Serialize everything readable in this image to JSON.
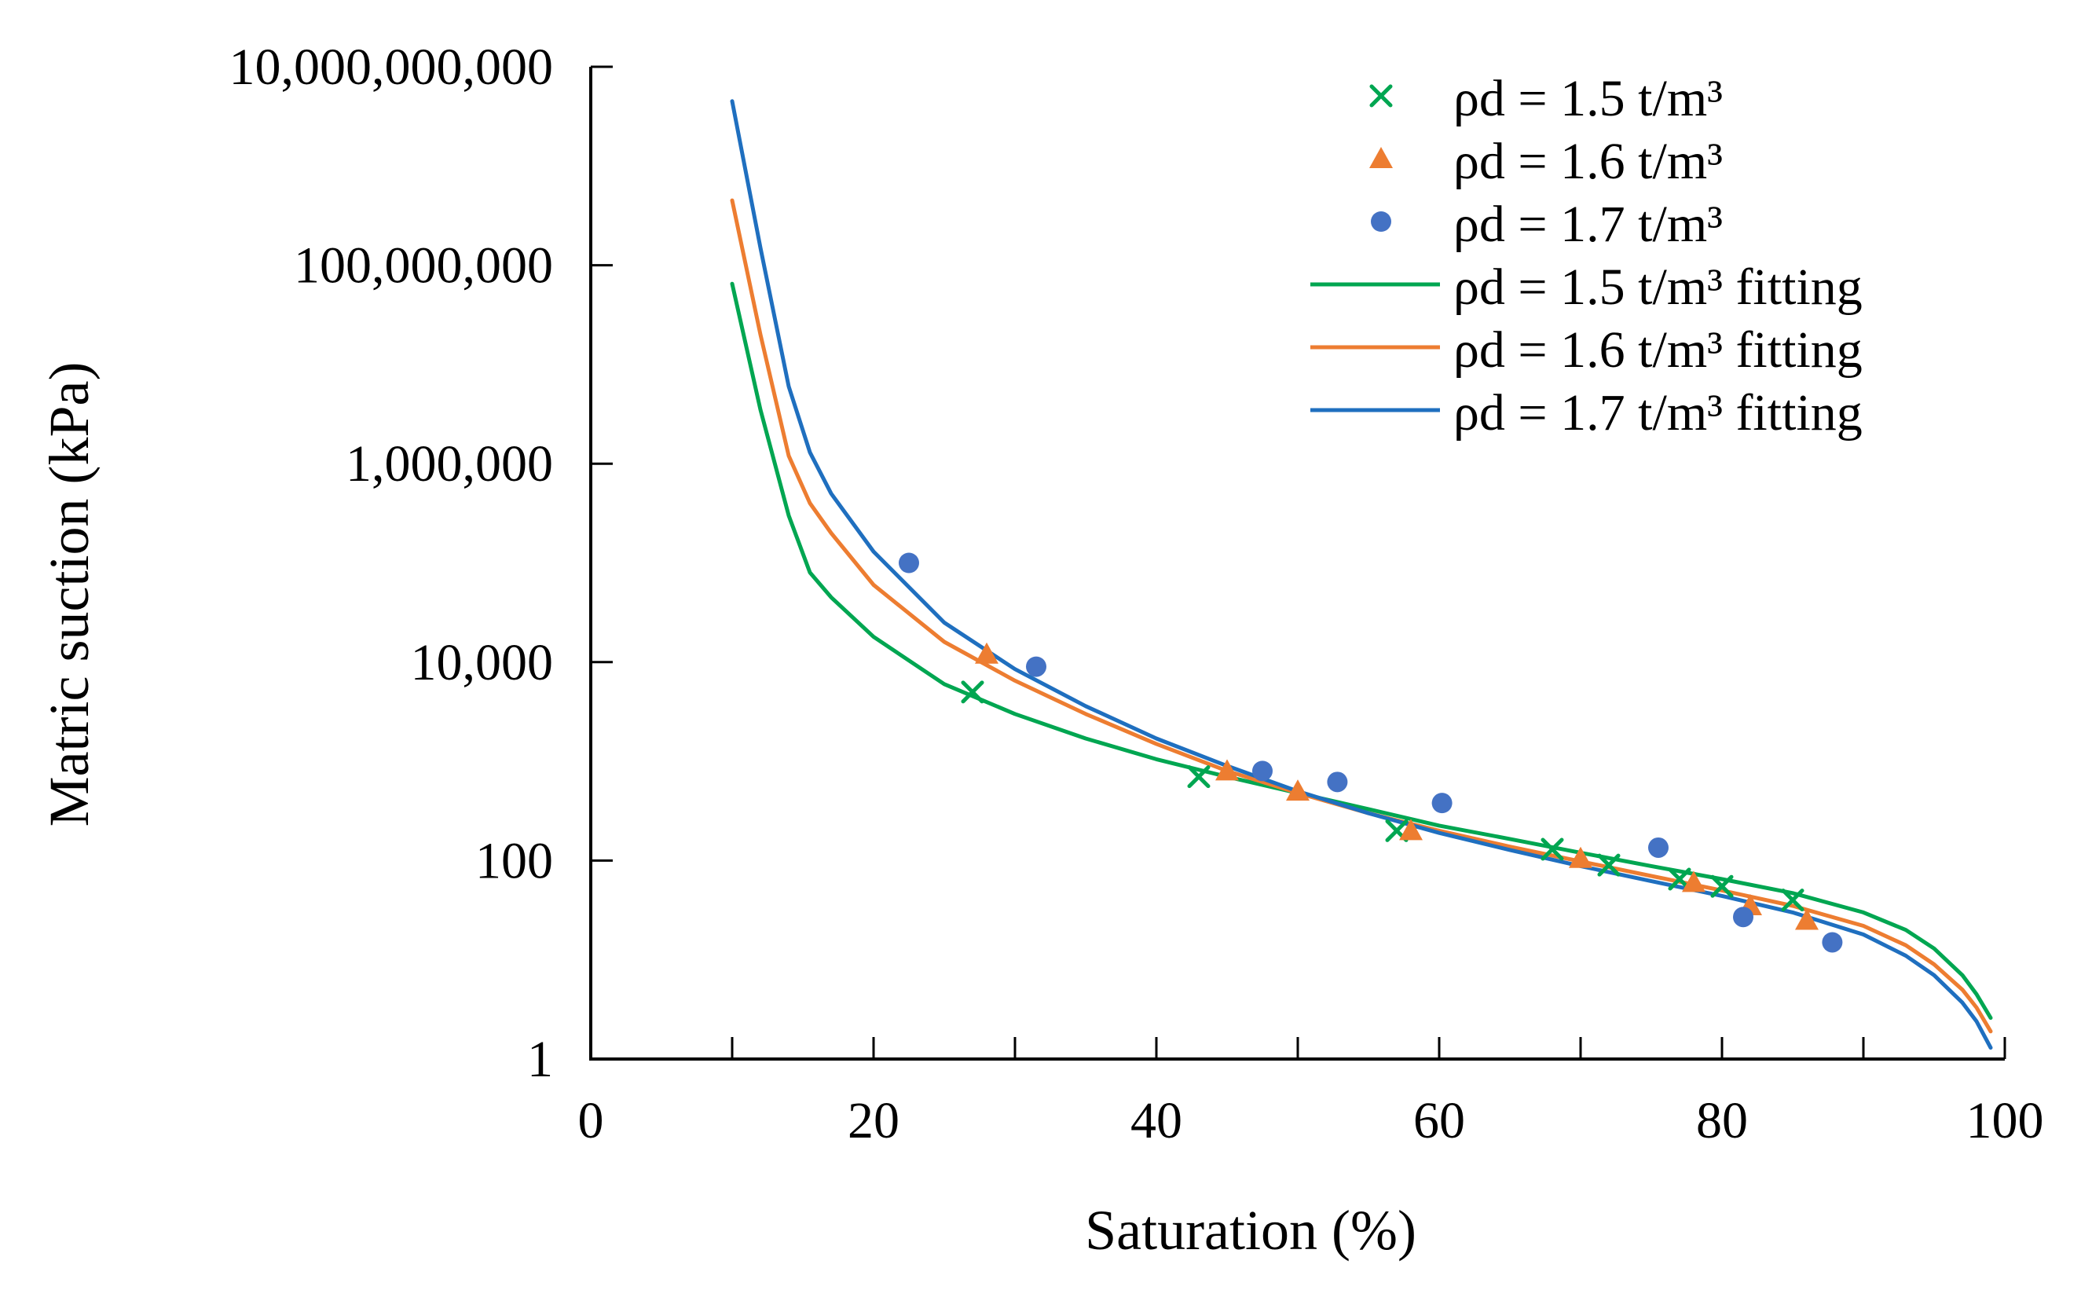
{
  "chart_data": {
    "type": "scatter",
    "title": "",
    "xlabel": "Saturation (%)",
    "ylabel": "Matric suction (kPa)",
    "xlim": [
      0,
      100
    ],
    "ylim": [
      1,
      10000000000
    ],
    "yscale": "log",
    "grid": false,
    "legend_position": "top-right",
    "x_ticks": [
      0,
      20,
      40,
      60,
      80,
      100
    ],
    "x_tick_labels": [
      "0",
      "20",
      "40",
      "60",
      "80",
      "100"
    ],
    "y_ticks": [
      1,
      100,
      10000,
      1000000,
      100000000,
      10000000000
    ],
    "y_tick_labels": [
      "1",
      "100",
      "10,000",
      "1,000,000",
      "100,000,000",
      "10,000,000,000"
    ],
    "series": [
      {
        "name": "ρd = 1.5 t/m³",
        "kind": "points",
        "marker": "x",
        "color": "#00a651",
        "x": [
          27,
          43,
          57,
          68,
          72,
          77,
          80,
          85
        ],
        "y": [
          5000,
          700,
          200,
          130,
          90,
          65,
          55,
          40
        ]
      },
      {
        "name": "ρd = 1.6 t/m³",
        "kind": "points",
        "marker": "triangle",
        "color": "#ed7d31",
        "x": [
          28,
          45,
          50,
          58,
          70,
          78,
          82,
          86
        ],
        "y": [
          12000,
          800,
          500,
          200,
          105,
          60,
          35,
          25
        ]
      },
      {
        "name": "ρd = 1.7 t/m³",
        "kind": "points",
        "marker": "circle",
        "color": "#4472c4",
        "x": [
          22.5,
          31.5,
          47.5,
          52.8,
          60.2,
          75.5,
          81.5,
          87.8
        ],
        "y": [
          100000,
          9000,
          800,
          620,
          380,
          135,
          27,
          15
        ]
      },
      {
        "name": "ρd = 1.5 t/m³ fitting",
        "kind": "line",
        "color": "#00a651",
        "x": [
          10,
          12,
          14,
          15.5,
          17,
          20,
          25,
          30,
          35,
          40,
          45,
          50,
          55,
          60,
          65,
          70,
          75,
          80,
          85,
          90,
          93,
          95,
          97,
          98,
          99
        ],
        "y": [
          65000000,
          3500000,
          300000,
          80000,
          45000,
          18000,
          6000,
          3000,
          1700,
          1050,
          700,
          480,
          330,
          225,
          165,
          120,
          88,
          65,
          47,
          30,
          20,
          13,
          7,
          4.5,
          2.6
        ]
      },
      {
        "name": "ρd = 1.6 t/m³ fitting",
        "kind": "line",
        "color": "#ed7d31",
        "x": [
          10,
          12,
          14,
          15.5,
          17,
          20,
          25,
          30,
          35,
          40,
          45,
          50,
          55,
          60,
          65,
          70,
          75,
          80,
          85,
          90,
          93,
          95,
          97,
          98,
          99
        ],
        "y": [
          450000000,
          20000000,
          1200000,
          400000,
          200000,
          60000,
          16000,
          6500,
          3000,
          1500,
          800,
          480,
          300,
          200,
          138,
          98,
          70,
          50,
          35,
          22,
          14,
          9,
          5,
          3.3,
          1.9
        ]
      },
      {
        "name": "ρd = 1.7 t/m³ fitting",
        "kind": "line",
        "color": "#1f6fbf",
        "x": [
          10,
          12,
          14,
          15.5,
          17,
          20,
          25,
          30,
          35,
          40,
          45,
          50,
          55,
          60,
          65,
          70,
          75,
          80,
          85,
          90,
          93,
          95,
          97,
          98,
          99
        ],
        "y": [
          4500000000,
          150000000,
          6000000,
          1300000,
          500000,
          130000,
          25000,
          8500,
          3600,
          1700,
          900,
          500,
          300,
          190,
          128,
          88,
          62,
          44,
          30,
          18,
          11,
          7,
          3.7,
          2.4,
          1.3
        ]
      }
    ]
  }
}
